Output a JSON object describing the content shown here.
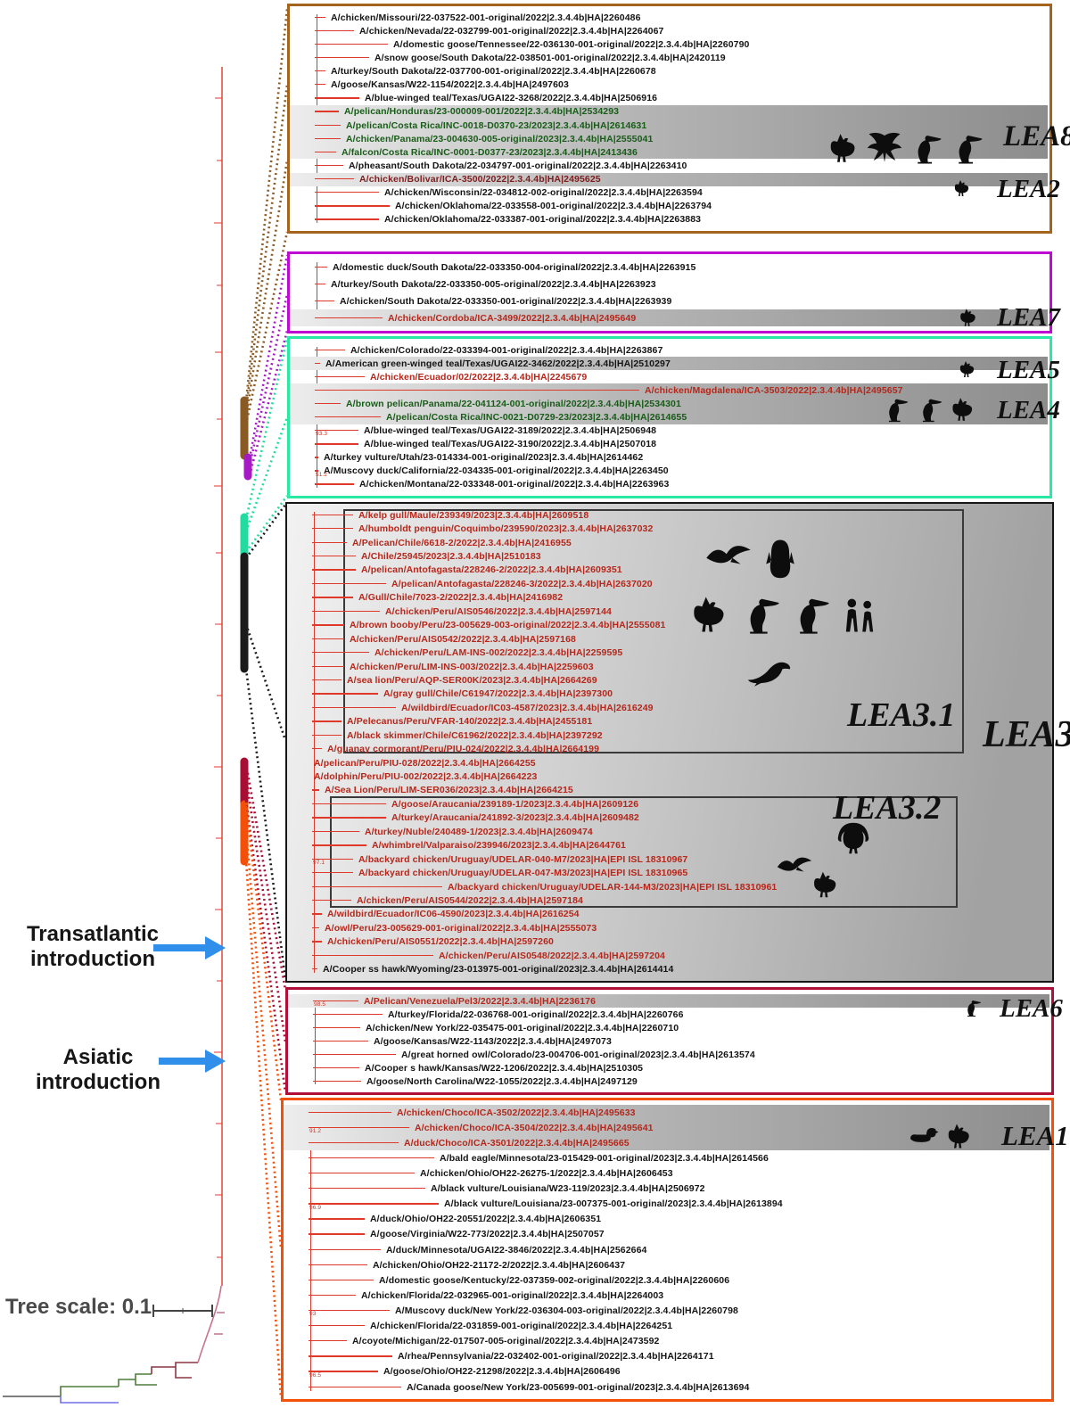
{
  "annotations": {
    "transatlantic": "Transatlantic introduction",
    "asiatic": "Asiatic introduction",
    "tree_scale": "Tree scale: 0.1"
  },
  "colors": {
    "lea8_border": "#a4641d",
    "lea7_border": "#bf0ad2",
    "lea45_border": "#2be8a2",
    "lea3_border": "#161616",
    "lea6_border": "#b00f38",
    "lea1_border": "#f4500a",
    "branch_red": "#e0392a",
    "arrow_blue": "#2f8fea",
    "taxon_red": "#b5271b",
    "taxon_green": "#175c17",
    "taxon_maroon": "#7c1d1d"
  },
  "boxes": [
    {
      "name": "LEA8-LEA2 box",
      "labels": [
        "LEA8",
        "LEA2"
      ],
      "icon_clusters": {
        "lea8": [
          "chicken",
          "eagle",
          "pelican",
          "pelican"
        ],
        "lea2": [
          "chicken"
        ]
      },
      "taxa": [
        {
          "label": "A/chicken/Missouri/22-037522-001-original/2022|2.3.4.4b|HA|2260486",
          "color": "black",
          "indent": 46,
          "band": 0
        },
        {
          "label": "A/chicken/Nevada/22-032799-001-original/2022|2.3.4.4b|HA|2264067",
          "color": "black",
          "indent": 78,
          "band": 0
        },
        {
          "label": "A/domestic goose/Tennessee/22-036130-001-original/2022|2.3.4.4b|HA|2260790",
          "color": "black",
          "indent": 116,
          "band": 0
        },
        {
          "label": "A/snow goose/South Dakota/22-038501-001-original/2022|2.3.4.4b|HA|2420119",
          "color": "black",
          "indent": 95,
          "band": 0
        },
        {
          "label": "A/turkey/South Dakota/22-037700-001-original/2022|2.3.4.4b|HA|2260678",
          "color": "black",
          "indent": 46,
          "band": 0
        },
        {
          "label": "A/goose/Kansas/W22-1154/2022|2.3.4.4b|HA|2497603",
          "color": "black",
          "indent": 46,
          "band": 0
        },
        {
          "label": "A/blue-winged teal/Texas/UGAI22-3268/2022|2.3.4.4b|HA|2506916",
          "color": "black",
          "indent": 84,
          "band": 0
        },
        {
          "label": "A/pelican/Honduras/23-000009-001/2022|2.3.4.4b|HA|2534293",
          "color": "green",
          "indent": 61,
          "band": 1
        },
        {
          "label": "A/pelican/Costa Rica/INC-0018-D0370-23/2023|2.3.4.4b|HA|2614631",
          "color": "green",
          "indent": 63,
          "band": 1
        },
        {
          "label": "A/chicken/Panama/23-004630-005-original/2023|2.3.4.4b|HA|2555041",
          "color": "green",
          "indent": 63,
          "band": 1
        },
        {
          "label": "A/falcon/Costa Rica/INC-0001-D0377-23/2023|2.3.4.4b|HA|2413436",
          "color": "green",
          "indent": 58,
          "band": 1
        },
        {
          "label": "A/pheasant/South Dakota/22-034797-001-original/2022|2.3.4.4b|HA|2263410",
          "color": "black",
          "indent": 66,
          "band": 0
        },
        {
          "label": "A/chicken/Bolivar/ICA-3500/2022|2.3.4.4b|HA|2495625",
          "color": "maroon",
          "indent": 78,
          "band": 1
        },
        {
          "label": "A/chicken/Wisconsin/22-034812-002-original/2022|2.3.4.4b|HA|2263594",
          "color": "black",
          "indent": 106,
          "band": 0
        },
        {
          "label": "A/chicken/Oklahoma/22-033558-001-original/2022|2.3.4.4b|HA|2263794",
          "color": "black",
          "indent": 118,
          "band": 0
        },
        {
          "label": "A/chicken/Oklahoma/22-033387-001-original/2022|2.3.4.4b|HA|2263883",
          "color": "black",
          "indent": 106,
          "band": 0
        }
      ]
    },
    {
      "name": "LEA7 box",
      "labels": [
        "LEA7"
      ],
      "icon_clusters": {
        "lea7": [
          "chicken"
        ]
      },
      "taxa": [
        {
          "label": "A/domestic duck/South Dakota/22-033350-004-original/2022|2.3.4.4b|HA|2263915",
          "color": "black",
          "indent": 48,
          "band": 0
        },
        {
          "label": "A/turkey/South Dakota/22-033350-005-original/2022|2.3.4.4b|HA|2263923",
          "color": "black",
          "indent": 46,
          "band": 0
        },
        {
          "label": "A/chicken/South Dakota/22-033350-001-original/2022|2.3.4.4b|HA|2263939",
          "color": "black",
          "indent": 56,
          "band": 0
        },
        {
          "label": "A/chicken/Cordoba/ICA-3499/2022|2.3.4.4b|HA|2495649",
          "color": "red",
          "indent": 110,
          "band": 1
        }
      ]
    },
    {
      "name": "LEA5-LEA4 box",
      "labels": [
        "LEA5",
        "LEA4"
      ],
      "icon_clusters": {
        "lea5": [
          "chicken"
        ],
        "lea4": [
          "pelican",
          "pelican",
          "chicken"
        ]
      },
      "taxa": [
        {
          "label": "A/chicken/Colorado/22-033394-001-original/2022|2.3.4.4b|HA|2263867",
          "color": "black",
          "indent": 68,
          "band": 0
        },
        {
          "label": "A/American green-winged teal/Texas/UGAI22-3462/2022|2.3.4.4b|HA|2510297",
          "color": "black",
          "indent": 40,
          "band": 1
        },
        {
          "label": "A/chicken/Ecuador/02/2022|2.3.4.4b|HA|2245679",
          "color": "red",
          "indent": 90,
          "band": 0
        },
        {
          "label": "A/chicken/Magdalena/ICA-3503/2022|2.3.4.4b|HA|2495657",
          "color": "red",
          "indent": 398,
          "band": 1
        },
        {
          "label": "A/brown pelican/Panama/22-041124-001-original/2022|2.3.4.4b|HA|2534301",
          "color": "green",
          "indent": 63,
          "band": 1
        },
        {
          "label": "A/pelican/Costa Rica/INC-0021-D0729-23/2023|2.3.4.4b|HA|2614655",
          "color": "green",
          "indent": 108,
          "band": 1
        },
        {
          "label": "A/blue-winged teal/Texas/UGAI22-3189/2022|2.3.4.4b|HA|2506948",
          "color": "black",
          "indent": 83,
          "band": 0,
          "sup": "93.3"
        },
        {
          "label": "A/blue-winged teal/Texas/UGAI22-3190/2022|2.3.4.4b|HA|2507018",
          "color": "black",
          "indent": 83,
          "band": 0
        },
        {
          "label": "A/turkey vulture/Utah/23-014334-001-original/2023|2.3.4.4b|HA|2614462",
          "color": "black",
          "indent": 38,
          "band": 0
        },
        {
          "label": "A/Muscovy duck/California/22-034335-001-original/2022|2.3.4.4b|HA|2263450",
          "color": "black",
          "indent": 38,
          "band": 0,
          "sup": "51.2"
        },
        {
          "label": "A/chicken/Montana/22-033348-001-original/2022|2.3.4.4b|HA|2263963",
          "color": "black",
          "indent": 78,
          "band": 0
        }
      ]
    },
    {
      "name": "LEA3 box",
      "labels": [
        "LEA3.1",
        "LEA3",
        "LEA3.2"
      ],
      "icon_clusters": {
        "c1": [
          "gull",
          "penguin"
        ],
        "c2": [
          "chicken",
          "pelican",
          "pelican",
          "people"
        ],
        "c3": [
          "sealion"
        ],
        "c4": [
          "turkey"
        ],
        "c5": [
          "gull"
        ],
        "c6": [
          "chicken"
        ]
      },
      "taxa": [
        {
          "label": "A/kelp gull/Maule/239349/2023|2.3.4.4b|HA|2609518",
          "color": "red",
          "indent": 80,
          "band": 0
        },
        {
          "label": "A/humboldt penguin/Coquimbo/239590/2023|2.3.4.4b|HA|2637032",
          "color": "red",
          "indent": 80,
          "band": 0
        },
        {
          "label": "A/Pelican/Chile/6618-2/2022|2.3.4.4b|HA|2416955",
          "color": "red",
          "indent": 73,
          "band": 0
        },
        {
          "label": "A/Chile/25945/2023|2.3.4.4b|HA|2510183",
          "color": "red",
          "indent": 83,
          "band": 0
        },
        {
          "label": "A/pelican/Antofagasta/228246-2/2022|2.3.4.4b|HA|2609351",
          "color": "red",
          "indent": 83,
          "band": 0
        },
        {
          "label": "A/pelican/Antofagasta/228246-3/2022|2.3.4.4b|HA|2637020",
          "color": "red",
          "indent": 117,
          "band": 0
        },
        {
          "label": "A/Gull/Chile/7023-2/2022|2.3.4.4b|HA|2416982",
          "color": "red",
          "indent": 80,
          "band": 0
        },
        {
          "label": "A/chicken/Peru/AIS0546/2022|2.3.4.4b|HA|2597144",
          "color": "red",
          "indent": 110,
          "band": 0
        },
        {
          "label": "A/brown booby/Peru/23-005629-003-original/2022|2.3.4.4b|HA|2555081",
          "color": "red",
          "indent": 70,
          "band": 0
        },
        {
          "label": "A/chicken/Peru/AIS0542/2022|2.3.4.4b|HA|2597168",
          "color": "red",
          "indent": 70,
          "band": 0
        },
        {
          "label": "A/chicken/Peru/LAM-INS-002/2022|2.3.4.4b|HA|2259595",
          "color": "red",
          "indent": 98,
          "band": 0
        },
        {
          "label": "A/chicken/Peru/LIM-INS-003/2022|2.3.4.4b|HA|2259603",
          "color": "red",
          "indent": 70,
          "band": 0
        },
        {
          "label": "A/sea lion/Peru/AQP-SER00K/2023|2.3.4.4b|HA|2664269",
          "color": "red",
          "indent": 67,
          "band": 0
        },
        {
          "label": "A/gray gull/Chile/C61947/2022|2.3.4.4b|HA|2397300",
          "color": "red",
          "indent": 108,
          "band": 0
        },
        {
          "label": "A/wildbird/Ecuador/IC03-4587/2023|2.3.4.4b|HA|2616249",
          "color": "red",
          "indent": 128,
          "band": 0
        },
        {
          "label": "A/Pelecanus/Peru/VFAR-140/2022|2.3.4.4b|HA|2455181",
          "color": "red",
          "indent": 67,
          "band": 0
        },
        {
          "label": "A/black skimmer/Chile/C61962/2022|2.3.4.4b|HA|2397292",
          "color": "red",
          "indent": 67,
          "band": 0
        },
        {
          "label": "A/guanay cormorant/Peru/PIU-024/2022|2.3.4.4b|HA|2664199",
          "color": "red",
          "indent": 45,
          "band": 0
        },
        {
          "label": "A/pelican/Peru/PIU-028/2022|2.3.4.4b|HA|2664255",
          "color": "red",
          "indent": 30,
          "band": 0
        },
        {
          "label": "A/dolphin/Peru/PIU-002/2022|2.3.4.4b|HA|2664223",
          "color": "red",
          "indent": 30,
          "band": 0
        },
        {
          "label": "A/Sea Lion/Peru/LIM-SER036/2023|2.3.4.4b|HA|2664215",
          "color": "red",
          "indent": 42,
          "band": 0
        },
        {
          "label": "A/goose/Araucania/239189-1/2023|2.3.4.4b|HA|2609126",
          "color": "red",
          "indent": 117,
          "band": 0
        },
        {
          "label": "A/turkey/Araucania/241892-3/2023|2.3.4.4b|HA|2609482",
          "color": "red",
          "indent": 117,
          "band": 0
        },
        {
          "label": "A/turkey/Nuble/240489-1/2023|2.3.4.4b|HA|2609474",
          "color": "red",
          "indent": 87,
          "band": 0
        },
        {
          "label": "A/whimbrel/Valparaiso/239946/2023|2.3.4.4b|HA|2644761",
          "color": "red",
          "indent": 95,
          "band": 0
        },
        {
          "label": "A/backyard chicken/Uruguay/UDELAR-040-M7/2023|HA|EPI ISL 18310967",
          "color": "red",
          "indent": 80,
          "band": 0,
          "sup": "97.1"
        },
        {
          "label": "A/backyard chicken/Uruguay/UDELAR-047-M3/2023|HA|EPI ISL 18310965",
          "color": "red",
          "indent": 80,
          "band": 0
        },
        {
          "label": "A/backyard chicken/Uruguay/UDELAR-144-M3/2023|HA|EPI ISL 18310961",
          "color": "red",
          "indent": 180,
          "band": 0
        },
        {
          "label": "A/chicken/Peru/AIS0544/2022|2.3.4.4b|HA|2597184",
          "color": "red",
          "indent": 78,
          "band": 0
        },
        {
          "label": "A/wildbird/Ecuador/IC06-4590/2023|2.3.4.4b|HA|2616254",
          "color": "red",
          "indent": 45,
          "band": 0
        },
        {
          "label": "A/owl/Peru/23-005629-001-original/2022|2.3.4.4b|HA|2555073",
          "color": "red",
          "indent": 42,
          "band": 0
        },
        {
          "label": "A/chicken/Peru/AIS0551/2022|2.3.4.4b|HA|2597260",
          "color": "red",
          "indent": 45,
          "band": 0
        },
        {
          "label": "A/chicken/Peru/AIS0548/2022|2.3.4.4b|HA|2597204",
          "color": "red",
          "indent": 170,
          "band": 0
        },
        {
          "label": "A/Cooper ss hawk/Wyoming/23-013975-001-original/2023|2.3.4.4b|HA|2614414",
          "color": "black",
          "indent": 40,
          "band": 0
        }
      ]
    },
    {
      "name": "LEA6 box",
      "labels": [
        "LEA6"
      ],
      "icon_clusters": {
        "lea6": [
          "pelican"
        ]
      },
      "taxa": [
        {
          "label": "A/Pelican/Venezuela/Pel3/2022|2.3.4.4b|HA|2236176",
          "color": "red",
          "indent": 85,
          "band": 1,
          "sup": "98.5"
        },
        {
          "label": "A/turkey/Florida/22-036768-001-original/2022|2.3.4.4b|HA|2260766",
          "color": "black",
          "indent": 112,
          "band": 0
        },
        {
          "label": "A/chicken/New York/22-035475-001-original/2022|2.3.4.4b|HA|2260710",
          "color": "black",
          "indent": 87,
          "band": 0
        },
        {
          "label": "A/goose/Kansas/W22-1143/2022|2.3.4.4b|HA|2497073",
          "color": "black",
          "indent": 96,
          "band": 0
        },
        {
          "label": "A/great horned owl/Colorado/23-004706-001-original/2023|2.3.4.4b|HA|2613574",
          "color": "black",
          "indent": 127,
          "band": 0
        },
        {
          "label": "A/Cooper s hawk/Kansas/W22-1206/2022|2.3.4.4b|HA|2510305",
          "color": "black",
          "indent": 86,
          "band": 0
        },
        {
          "label": "A/goose/North Carolina/W22-1055/2022|2.3.4.4b|HA|2497129",
          "color": "black",
          "indent": 88,
          "band": 0
        }
      ]
    },
    {
      "name": "LEA1 box",
      "labels": [
        "LEA1"
      ],
      "icon_clusters": {
        "lea1": [
          "duck",
          "chicken"
        ]
      },
      "taxa": [
        {
          "label": "A/chicken/Choco/ICA-3502/2022|2.3.4.4b|HA|2495633",
          "color": "red",
          "indent": 127,
          "band": 1
        },
        {
          "label": "A/chicken/Choco/ICA-3504/2022|2.3.4.4b|HA|2495641",
          "color": "red",
          "indent": 147,
          "band": 1,
          "sup": "91.2"
        },
        {
          "label": "A/duck/Choco/ICA-3501/2022|2.3.4.4b|HA|2495665",
          "color": "red",
          "indent": 135,
          "band": 1
        },
        {
          "label": "A/bald eagle/Minnesota/23-015429-001-original/2023|2.3.4.4b|HA|2614566",
          "color": "black",
          "indent": 175,
          "band": 0
        },
        {
          "label": "A/chicken/Ohio/OH22-26275-1/2022|2.3.4.4b|HA|2606453",
          "color": "black",
          "indent": 153,
          "band": 0
        },
        {
          "label": "A/black vulture/Louisiana/W23-119/2023|2.3.4.4b|HA|2506972",
          "color": "black",
          "indent": 165,
          "band": 0
        },
        {
          "label": "A/black vulture/Louisiana/23-007375-001-original/2023|2.3.4.4b|HA|2613894",
          "color": "black",
          "indent": 180,
          "band": 0,
          "sup": "96.9"
        },
        {
          "label": "A/duck/Ohio/OH22-20551/2022|2.3.4.4b|HA|2606351",
          "color": "black",
          "indent": 97,
          "band": 0
        },
        {
          "label": "A/goose/Virginia/W22-773/2022|2.3.4.4b|HA|2507057",
          "color": "black",
          "indent": 97,
          "band": 0
        },
        {
          "label": "A/duck/Minnesota/UGAI22-3846/2022|2.3.4.4b|HA|2562664",
          "color": "black",
          "indent": 115,
          "band": 0
        },
        {
          "label": "A/chicken/Ohio/OH22-21172-2/2022|2.3.4.4b|HA|2606437",
          "color": "black",
          "indent": 100,
          "band": 0
        },
        {
          "label": "A/domestic goose/Kentucky/22-037359-002-original/2022|2.3.4.4b|HA|2260606",
          "color": "black",
          "indent": 107,
          "band": 0
        },
        {
          "label": "A/chicken/Florida/22-032965-001-original/2022|2.3.4.4b|HA|2264003",
          "color": "black",
          "indent": 87,
          "band": 0
        },
        {
          "label": "A/Muscovy duck/New York/22-036304-003-original/2022|2.3.4.4b|HA|2260798",
          "color": "black",
          "indent": 125,
          "band": 0,
          "sup": "93"
        },
        {
          "label": "A/chicken/Florida/22-031859-001-original/2022|2.3.4.4b|HA|2264251",
          "color": "black",
          "indent": 97,
          "band": 0
        },
        {
          "label": "A/coyote/Michigan/22-017507-005-original/2022|2.3.4.4b|HA|2473592",
          "color": "black",
          "indent": 77,
          "band": 0
        },
        {
          "label": "A/rhea/Pennsylvania/22-032402-001-original/2022|2.3.4.4b|HA|2264171",
          "color": "black",
          "indent": 128,
          "band": 0
        },
        {
          "label": "A/goose/Ohio/OH22-21298/2022|2.3.4.4b|HA|2606496",
          "color": "black",
          "indent": 112,
          "band": 0,
          "sup": "96.5"
        },
        {
          "label": "A/Canada goose/New York/23-005699-001-original/2023|2.3.4.4b|HA|2613694",
          "color": "black",
          "indent": 138,
          "band": 0
        }
      ]
    }
  ]
}
